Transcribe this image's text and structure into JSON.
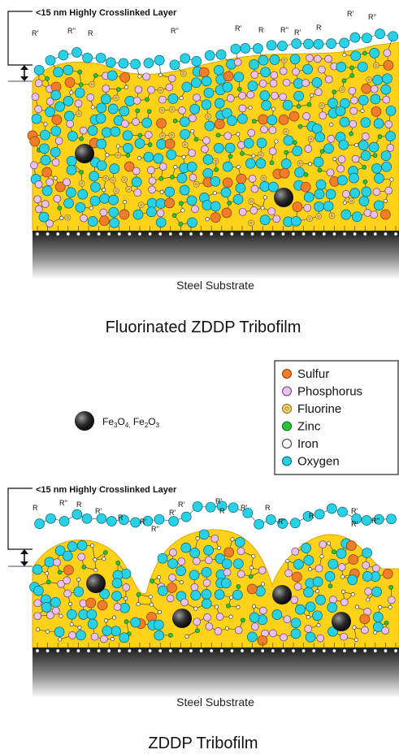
{
  "top_panel": {
    "layer_label": "<15 nm Highly Crosslinked Layer",
    "substrate_label": "Steel Substrate",
    "caption": "Fluorinated ZDDP Tribofilm",
    "r_labels": [
      "R'",
      "R''",
      "R",
      "R''",
      "R'",
      "R",
      "R''",
      "R'",
      "R",
      "R'",
      "R''"
    ]
  },
  "bottom_panel": {
    "layer_label": "<15 nm Highly Crosslinked Layer",
    "substrate_label": "Steel Substrate",
    "caption": "ZDDP Tribofilm",
    "r_labels": [
      "R",
      "R''",
      "R",
      "R'",
      "R",
      "R'",
      "R''",
      "R'",
      "R'",
      "R'",
      "R",
      "R'",
      "R",
      "R''",
      "R",
      "R'",
      "R'",
      "R''"
    ]
  },
  "oxide": {
    "label_main": "Fe",
    "sub1": "3",
    "mid": "O",
    "sub2": "4,",
    "label2": " Fe",
    "sub3": "2",
    "mid2": "O",
    "sub4": "3"
  },
  "legend": {
    "items": [
      {
        "label": "Sulfur",
        "color": "#f07d2a",
        "stroke": "#8a3a00"
      },
      {
        "label": "Phosphorus",
        "color": "#e8c3ef",
        "stroke": "#6b3d73"
      },
      {
        "label": "Fluorine",
        "color": "#f5d57a",
        "stroke": "#8a6a10"
      },
      {
        "label": "Zinc",
        "color": "#2cc43a",
        "stroke": "#0d6b16"
      },
      {
        "label": "Iron",
        "color": "#ffffff",
        "stroke": "#333333"
      },
      {
        "label": "Oxygen",
        "color": "#29d1e6",
        "stroke": "#05626f"
      }
    ]
  },
  "colors": {
    "film": "#ffd21a",
    "film_edge": "#e0a800",
    "steel_top": "#1a1a1a",
    "steel_bottom": "#ffffff",
    "bond": "#333333"
  }
}
